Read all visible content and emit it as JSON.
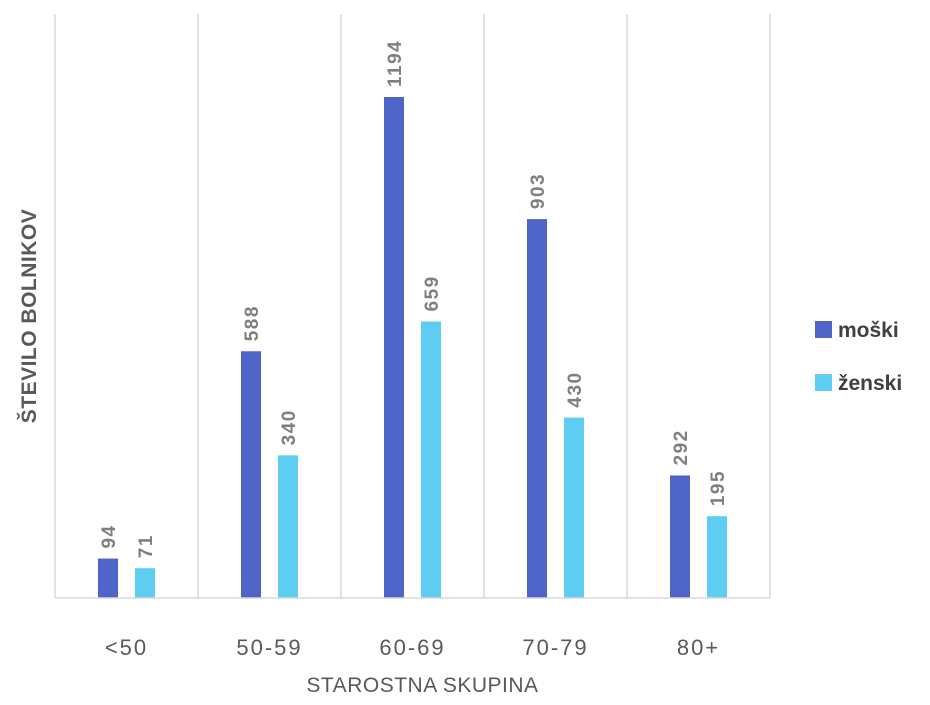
{
  "chart_data": {
    "type": "bar",
    "title": "",
    "xlabel": "STAROSTNA SKUPINA",
    "ylabel": "ŠTEVILO BOLNIKOV",
    "categories": [
      "<50",
      "50-59",
      "60-69",
      "70-79",
      "80+"
    ],
    "series": [
      {
        "name": "moški",
        "color": "#4e64c8",
        "values": [
          94,
          588,
          1194,
          903,
          292
        ]
      },
      {
        "name": "ženski",
        "color": "#5dcdf2",
        "values": [
          71,
          340,
          659,
          430,
          195
        ]
      }
    ],
    "ylim": [
      0,
      1194
    ],
    "grid": "vertical category separators",
    "legend": "right",
    "data_labels": true,
    "data_label_rotation": "vertical"
  }
}
